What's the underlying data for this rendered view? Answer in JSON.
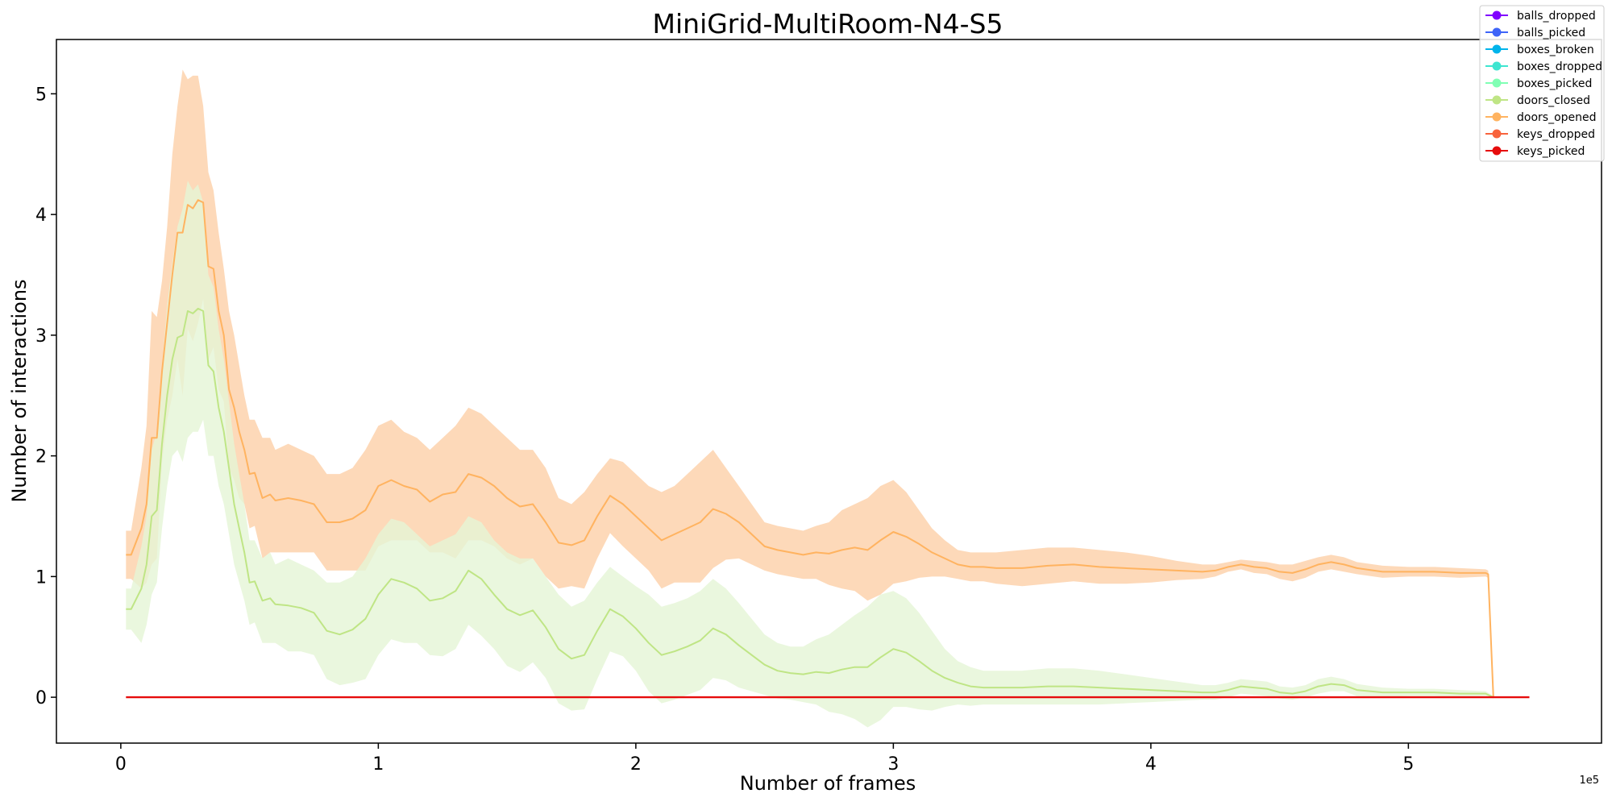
{
  "chart_data": {
    "type": "line",
    "title": "MiniGrid-MultiRoom-N4-S5",
    "xlabel": "Number of frames",
    "ylabel": "Number of interactions",
    "x_offset_label": "1e5",
    "xlim": [
      -0.25,
      5.75
    ],
    "ylim": [
      -0.38,
      5.45
    ],
    "x_ticks": [
      0,
      1,
      2,
      3,
      4,
      5
    ],
    "y_ticks": [
      0,
      1,
      2,
      3,
      4,
      5
    ],
    "grid": false,
    "legend_position": "top-right",
    "legend": [
      {
        "name": "balls_dropped",
        "color": "#8000ff"
      },
      {
        "name": "balls_picked",
        "color": "#3e64f8"
      },
      {
        "name": "boxes_broken",
        "color": "#00b4eb"
      },
      {
        "name": "boxes_dropped",
        "color": "#3ee5d0"
      },
      {
        "name": "boxes_picked",
        "color": "#80ffb4"
      },
      {
        "name": "doors_closed",
        "color": "#bfe585"
      },
      {
        "name": "doors_opened",
        "color": "#ffb360"
      },
      {
        "name": "keys_dropped",
        "color": "#f8633c"
      },
      {
        "name": "keys_picked",
        "color": "#e60c0c"
      }
    ],
    "series": [
      {
        "name": "doors_opened",
        "color": "#ffb360",
        "band_color": "#fdd0a8",
        "x": [
          0.02,
          0.04,
          0.08,
          0.1,
          0.12,
          0.14,
          0.16,
          0.18,
          0.2,
          0.22,
          0.24,
          0.26,
          0.28,
          0.3,
          0.32,
          0.34,
          0.36,
          0.38,
          0.4,
          0.42,
          0.44,
          0.46,
          0.48,
          0.5,
          0.52,
          0.55,
          0.58,
          0.6,
          0.65,
          0.7,
          0.75,
          0.8,
          0.85,
          0.9,
          0.95,
          1.0,
          1.05,
          1.1,
          1.15,
          1.2,
          1.25,
          1.3,
          1.35,
          1.4,
          1.45,
          1.5,
          1.55,
          1.6,
          1.65,
          1.7,
          1.75,
          1.8,
          1.85,
          1.9,
          1.95,
          2.0,
          2.05,
          2.1,
          2.15,
          2.2,
          2.25,
          2.3,
          2.35,
          2.4,
          2.45,
          2.5,
          2.55,
          2.6,
          2.65,
          2.7,
          2.75,
          2.8,
          2.85,
          2.9,
          2.95,
          3.0,
          3.05,
          3.1,
          3.15,
          3.2,
          3.25,
          3.3,
          3.35,
          3.4,
          3.5,
          3.6,
          3.7,
          3.8,
          3.9,
          4.0,
          4.1,
          4.2,
          4.25,
          4.3,
          4.35,
          4.4,
          4.45,
          4.5,
          4.55,
          4.6,
          4.65,
          4.7,
          4.75,
          4.8,
          4.9,
          5.0,
          5.1,
          5.2,
          5.3,
          5.31,
          5.33
        ],
        "mean": [
          1.18,
          1.18,
          1.4,
          1.6,
          2.15,
          2.15,
          2.7,
          3.1,
          3.5,
          3.85,
          3.85,
          4.08,
          4.05,
          4.12,
          4.1,
          3.57,
          3.55,
          3.2,
          3.0,
          2.55,
          2.4,
          2.2,
          2.05,
          1.85,
          1.86,
          1.65,
          1.68,
          1.63,
          1.65,
          1.63,
          1.6,
          1.45,
          1.45,
          1.48,
          1.55,
          1.75,
          1.8,
          1.75,
          1.72,
          1.62,
          1.68,
          1.7,
          1.85,
          1.82,
          1.75,
          1.65,
          1.58,
          1.6,
          1.45,
          1.28,
          1.26,
          1.3,
          1.5,
          1.67,
          1.6,
          1.5,
          1.4,
          1.3,
          1.35,
          1.4,
          1.45,
          1.56,
          1.52,
          1.45,
          1.35,
          1.25,
          1.22,
          1.2,
          1.18,
          1.2,
          1.19,
          1.22,
          1.24,
          1.22,
          1.3,
          1.37,
          1.33,
          1.27,
          1.2,
          1.15,
          1.1,
          1.08,
          1.08,
          1.07,
          1.07,
          1.09,
          1.1,
          1.08,
          1.07,
          1.06,
          1.05,
          1.04,
          1.05,
          1.08,
          1.1,
          1.08,
          1.07,
          1.04,
          1.03,
          1.06,
          1.1,
          1.12,
          1.1,
          1.07,
          1.04,
          1.04,
          1.04,
          1.03,
          1.03,
          1.02,
          0.0
        ],
        "upper": [
          1.38,
          1.38,
          1.9,
          2.25,
          3.2,
          3.15,
          3.45,
          3.9,
          4.5,
          4.9,
          5.2,
          5.12,
          5.15,
          5.15,
          4.9,
          4.35,
          4.2,
          3.85,
          3.55,
          3.2,
          3.0,
          2.75,
          2.5,
          2.3,
          2.3,
          2.15,
          2.15,
          2.05,
          2.1,
          2.05,
          2.0,
          1.85,
          1.85,
          1.9,
          2.05,
          2.25,
          2.3,
          2.2,
          2.15,
          2.05,
          2.15,
          2.25,
          2.4,
          2.35,
          2.25,
          2.15,
          2.05,
          2.05,
          1.9,
          1.65,
          1.6,
          1.7,
          1.85,
          1.98,
          1.95,
          1.85,
          1.75,
          1.7,
          1.75,
          1.85,
          1.95,
          2.05,
          1.9,
          1.75,
          1.6,
          1.45,
          1.42,
          1.4,
          1.38,
          1.42,
          1.45,
          1.55,
          1.6,
          1.65,
          1.75,
          1.8,
          1.7,
          1.55,
          1.4,
          1.3,
          1.22,
          1.2,
          1.2,
          1.2,
          1.22,
          1.24,
          1.24,
          1.22,
          1.2,
          1.17,
          1.13,
          1.1,
          1.1,
          1.12,
          1.14,
          1.13,
          1.12,
          1.1,
          1.1,
          1.13,
          1.16,
          1.18,
          1.16,
          1.12,
          1.09,
          1.08,
          1.08,
          1.07,
          1.06,
          1.05,
          0.02
        ],
        "lower": [
          0.98,
          0.98,
          0.9,
          0.95,
          1.1,
          1.15,
          1.95,
          2.3,
          2.5,
          2.8,
          2.5,
          3.05,
          2.95,
          3.1,
          3.3,
          2.8,
          2.9,
          2.55,
          2.45,
          1.9,
          1.8,
          1.65,
          1.6,
          1.4,
          1.42,
          1.15,
          1.2,
          1.2,
          1.2,
          1.2,
          1.2,
          1.05,
          1.05,
          1.05,
          1.05,
          1.25,
          1.3,
          1.3,
          1.3,
          1.2,
          1.2,
          1.15,
          1.3,
          1.3,
          1.25,
          1.15,
          1.1,
          1.15,
          1.0,
          0.9,
          0.92,
          0.9,
          1.15,
          1.36,
          1.25,
          1.15,
          1.05,
          0.9,
          0.95,
          0.95,
          0.95,
          1.07,
          1.14,
          1.15,
          1.1,
          1.05,
          1.02,
          1.0,
          0.98,
          0.98,
          0.93,
          0.9,
          0.88,
          0.8,
          0.85,
          0.94,
          0.96,
          0.99,
          1.0,
          1.0,
          0.98,
          0.96,
          0.96,
          0.94,
          0.92,
          0.94,
          0.96,
          0.94,
          0.94,
          0.95,
          0.97,
          0.98,
          1.0,
          1.04,
          1.06,
          1.03,
          1.02,
          0.98,
          0.96,
          0.99,
          1.04,
          1.06,
          1.04,
          1.02,
          0.99,
          1.0,
          1.0,
          0.99,
          1.0,
          0.99,
          0.0
        ]
      },
      {
        "name": "doors_closed",
        "color": "#bfe585",
        "band_color": "#e5f5d6",
        "x": [
          0.02,
          0.04,
          0.08,
          0.1,
          0.12,
          0.14,
          0.16,
          0.18,
          0.2,
          0.22,
          0.24,
          0.26,
          0.28,
          0.3,
          0.32,
          0.34,
          0.36,
          0.38,
          0.4,
          0.42,
          0.44,
          0.46,
          0.48,
          0.5,
          0.52,
          0.55,
          0.58,
          0.6,
          0.65,
          0.7,
          0.75,
          0.8,
          0.85,
          0.9,
          0.95,
          1.0,
          1.05,
          1.1,
          1.15,
          1.2,
          1.25,
          1.3,
          1.35,
          1.4,
          1.45,
          1.5,
          1.55,
          1.6,
          1.65,
          1.7,
          1.75,
          1.8,
          1.85,
          1.9,
          1.95,
          2.0,
          2.05,
          2.1,
          2.15,
          2.2,
          2.25,
          2.3,
          2.35,
          2.4,
          2.45,
          2.5,
          2.55,
          2.6,
          2.65,
          2.7,
          2.75,
          2.8,
          2.85,
          2.9,
          2.95,
          3.0,
          3.05,
          3.1,
          3.15,
          3.2,
          3.25,
          3.3,
          3.35,
          3.4,
          3.5,
          3.6,
          3.7,
          3.8,
          3.9,
          4.0,
          4.1,
          4.2,
          4.25,
          4.3,
          4.35,
          4.4,
          4.45,
          4.5,
          4.55,
          4.6,
          4.65,
          4.7,
          4.75,
          4.8,
          4.9,
          5.0,
          5.1,
          5.2,
          5.3,
          5.33
        ],
        "mean": [
          0.73,
          0.73,
          0.9,
          1.1,
          1.5,
          1.55,
          2.1,
          2.5,
          2.8,
          2.98,
          3.0,
          3.2,
          3.18,
          3.22,
          3.2,
          2.75,
          2.7,
          2.4,
          2.2,
          1.9,
          1.6,
          1.4,
          1.2,
          0.95,
          0.96,
          0.8,
          0.82,
          0.77,
          0.76,
          0.74,
          0.7,
          0.55,
          0.52,
          0.56,
          0.65,
          0.85,
          0.98,
          0.95,
          0.9,
          0.8,
          0.82,
          0.88,
          1.05,
          0.98,
          0.85,
          0.73,
          0.68,
          0.72,
          0.58,
          0.4,
          0.32,
          0.35,
          0.55,
          0.73,
          0.67,
          0.57,
          0.45,
          0.35,
          0.38,
          0.42,
          0.47,
          0.57,
          0.52,
          0.43,
          0.35,
          0.27,
          0.22,
          0.2,
          0.19,
          0.21,
          0.2,
          0.23,
          0.25,
          0.25,
          0.33,
          0.4,
          0.37,
          0.3,
          0.22,
          0.16,
          0.12,
          0.09,
          0.08,
          0.08,
          0.08,
          0.09,
          0.09,
          0.08,
          0.07,
          0.06,
          0.05,
          0.04,
          0.04,
          0.06,
          0.09,
          0.08,
          0.07,
          0.04,
          0.03,
          0.05,
          0.09,
          0.11,
          0.1,
          0.06,
          0.04,
          0.04,
          0.04,
          0.03,
          0.03,
          0.0
        ],
        "upper": [
          0.9,
          0.9,
          1.25,
          1.5,
          2.05,
          2.2,
          2.75,
          3.25,
          3.6,
          3.9,
          4.05,
          4.28,
          4.2,
          4.25,
          4.1,
          3.5,
          3.4,
          3.05,
          2.8,
          2.45,
          2.1,
          1.85,
          1.6,
          1.3,
          1.3,
          1.15,
          1.2,
          1.1,
          1.15,
          1.1,
          1.05,
          0.95,
          0.95,
          1.0,
          1.15,
          1.35,
          1.48,
          1.45,
          1.35,
          1.25,
          1.3,
          1.35,
          1.5,
          1.45,
          1.3,
          1.2,
          1.15,
          1.15,
          1.0,
          0.85,
          0.75,
          0.8,
          0.95,
          1.08,
          1.0,
          0.92,
          0.85,
          0.75,
          0.78,
          0.82,
          0.88,
          0.98,
          0.9,
          0.78,
          0.65,
          0.52,
          0.45,
          0.42,
          0.42,
          0.48,
          0.52,
          0.6,
          0.68,
          0.75,
          0.85,
          0.88,
          0.82,
          0.7,
          0.55,
          0.4,
          0.3,
          0.25,
          0.22,
          0.22,
          0.22,
          0.24,
          0.24,
          0.22,
          0.19,
          0.16,
          0.13,
          0.1,
          0.1,
          0.12,
          0.15,
          0.14,
          0.13,
          0.09,
          0.08,
          0.1,
          0.15,
          0.17,
          0.15,
          0.11,
          0.08,
          0.07,
          0.07,
          0.06,
          0.05,
          0.01
        ],
        "lower": [
          0.56,
          0.56,
          0.45,
          0.6,
          0.85,
          0.95,
          1.4,
          1.75,
          2.0,
          2.05,
          1.95,
          2.15,
          2.2,
          2.2,
          2.3,
          2.0,
          2.0,
          1.75,
          1.6,
          1.35,
          1.1,
          0.95,
          0.8,
          0.6,
          0.62,
          0.45,
          0.45,
          0.45,
          0.38,
          0.38,
          0.35,
          0.15,
          0.1,
          0.12,
          0.15,
          0.35,
          0.48,
          0.45,
          0.45,
          0.35,
          0.34,
          0.4,
          0.6,
          0.51,
          0.4,
          0.26,
          0.21,
          0.29,
          0.16,
          -0.05,
          -0.11,
          -0.1,
          0.15,
          0.38,
          0.34,
          0.22,
          0.05,
          -0.05,
          -0.02,
          0.02,
          0.06,
          0.16,
          0.14,
          0.08,
          0.05,
          0.02,
          -0.01,
          -0.02,
          -0.04,
          -0.06,
          -0.12,
          -0.14,
          -0.18,
          -0.25,
          -0.19,
          -0.08,
          -0.08,
          -0.1,
          -0.11,
          -0.08,
          -0.06,
          -0.07,
          -0.06,
          -0.06,
          -0.06,
          -0.06,
          -0.06,
          -0.06,
          -0.05,
          -0.04,
          -0.03,
          -0.02,
          -0.02,
          0.0,
          0.03,
          0.02,
          0.01,
          -0.01,
          -0.02,
          0.0,
          0.03,
          0.05,
          0.05,
          0.01,
          0.0,
          0.01,
          0.01,
          0.0,
          0.01,
          -0.01
        ]
      },
      {
        "name": "keys_picked",
        "color": "#e60c0c",
        "x": [
          0.02,
          5.47
        ],
        "mean": [
          0,
          0
        ]
      }
    ]
  }
}
